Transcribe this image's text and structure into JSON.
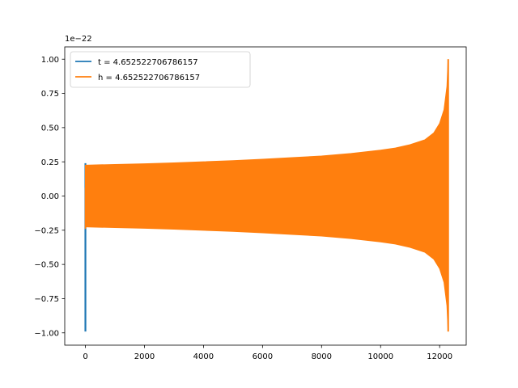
{
  "chart_data": {
    "type": "line",
    "title": "",
    "xlabel": "",
    "ylabel": "",
    "y_offset_label": "1e−22",
    "xlim": [
      -700,
      12900
    ],
    "ylim": [
      -1.09,
      1.09
    ],
    "x_ticks": [
      0,
      2000,
      4000,
      6000,
      8000,
      10000,
      12000
    ],
    "x_tick_labels": [
      "0",
      "2000",
      "4000",
      "6000",
      "8000",
      "10000",
      "12000"
    ],
    "y_ticks": [
      -1.0,
      -0.75,
      -0.5,
      -0.25,
      0.0,
      0.25,
      0.5,
      0.75,
      1.0
    ],
    "y_tick_labels": [
      "−1.00",
      "−0.75",
      "−0.50",
      "−0.25",
      "0.00",
      "0.25",
      "0.50",
      "0.75",
      "1.00"
    ],
    "grid": false,
    "legend_position": "top-left",
    "series": [
      {
        "name": "t = 4.652522706786157",
        "color": "#1f77b4",
        "x": [
          0,
          0,
          0,
          0
        ],
        "y": [
          0.24,
          -0.99,
          0.24,
          -0.99
        ]
      },
      {
        "name": "h = 4.652522706786157",
        "color": "#ff7f0e",
        "envelope": {
          "x": [
            0,
            1000,
            2000,
            3000,
            4000,
            5000,
            6000,
            7000,
            8000,
            9000,
            10000,
            10500,
            11000,
            11500,
            11800,
            12000,
            12150,
            12250,
            12290
          ],
          "upper": [
            0.225,
            0.23,
            0.235,
            0.242,
            0.25,
            0.258,
            0.268,
            0.28,
            0.292,
            0.31,
            0.335,
            0.35,
            0.375,
            0.41,
            0.46,
            0.53,
            0.63,
            0.8,
            1.0
          ],
          "lower": [
            -0.225,
            -0.23,
            -0.235,
            -0.242,
            -0.25,
            -0.258,
            -0.268,
            -0.28,
            -0.292,
            -0.31,
            -0.335,
            -0.35,
            -0.375,
            -0.41,
            -0.46,
            -0.53,
            -0.63,
            -0.8,
            -0.99
          ]
        }
      }
    ]
  }
}
